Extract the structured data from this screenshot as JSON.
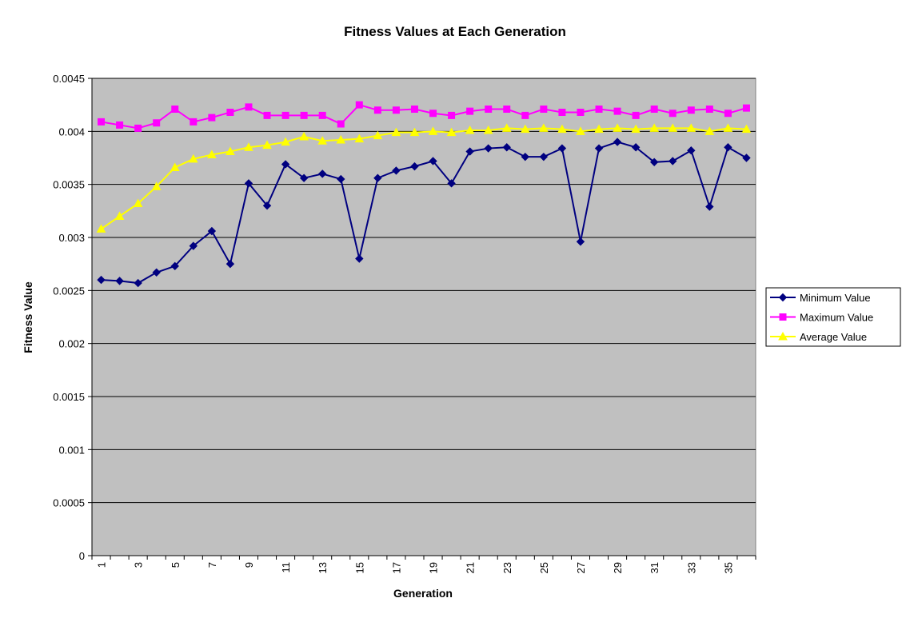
{
  "chart_data": {
    "type": "line",
    "title": "Fitness Values at Each Generation",
    "x_label": "Generation",
    "y_label": "Fitness Value",
    "categories": [
      "1",
      null,
      "3",
      null,
      "5",
      null,
      "7",
      null,
      "9",
      null,
      "11",
      null,
      "13",
      null,
      "15",
      null,
      "17",
      null,
      "19",
      null,
      "21",
      null,
      "23",
      null,
      "25",
      null,
      "27",
      null,
      "29",
      null,
      "31",
      null,
      "33",
      null,
      "35",
      null
    ],
    "series": [
      {
        "name": "Minimum Value",
        "color": "#000080",
        "marker": "diamond",
        "values": [
          0.0026,
          0.00259,
          0.00257,
          0.00267,
          0.00273,
          0.00292,
          0.00306,
          0.00275,
          0.00351,
          0.0033,
          0.00369,
          0.00356,
          0.0036,
          0.00355,
          0.0028,
          0.00356,
          0.00363,
          0.00367,
          0.00372,
          0.00351,
          0.00381,
          0.00384,
          0.00385,
          0.00376,
          0.00376,
          0.00384,
          0.00296,
          0.00384,
          0.0039,
          0.00385,
          0.00371,
          0.00372,
          0.00382,
          0.00329,
          0.00385,
          0.00375
        ]
      },
      {
        "name": "Maximum Value",
        "color": "#ff00ff",
        "marker": "square",
        "values": [
          0.00409,
          0.00406,
          0.00403,
          0.00408,
          0.00421,
          0.00409,
          0.00413,
          0.00418,
          0.00423,
          0.00415,
          0.00415,
          0.00415,
          0.00415,
          0.00407,
          0.00425,
          0.0042,
          0.0042,
          0.00421,
          0.00417,
          0.00415,
          0.00419,
          0.00421,
          0.00421,
          0.00415,
          0.00421,
          0.00418,
          0.00418,
          0.00421,
          0.00419,
          0.00415,
          0.00421,
          0.00417,
          0.0042,
          0.00421,
          0.00417,
          0.00422
        ]
      },
      {
        "name": "Average Value",
        "color": "#ffff00",
        "marker": "triangle",
        "values": [
          0.00308,
          0.0032,
          0.00332,
          0.00348,
          0.00366,
          0.00374,
          0.00378,
          0.00381,
          0.00385,
          0.00387,
          0.0039,
          0.00395,
          0.00391,
          0.00392,
          0.00393,
          0.00396,
          0.00399,
          0.00399,
          0.004,
          0.00399,
          0.00401,
          0.00401,
          0.00403,
          0.00402,
          0.00403,
          0.00402,
          0.004,
          0.00402,
          0.00403,
          0.00402,
          0.00403,
          0.00403,
          0.00403,
          0.004,
          0.00403,
          0.00402
        ]
      }
    ],
    "ylim": [
      0,
      0.0045
    ],
    "yticks": [
      0,
      0.0005,
      0.001,
      0.0015,
      0.002,
      0.0025,
      0.003,
      0.0035,
      0.004,
      0.0045
    ],
    "grid": true,
    "plot_background": "#c0c0c0",
    "legend": "right"
  }
}
